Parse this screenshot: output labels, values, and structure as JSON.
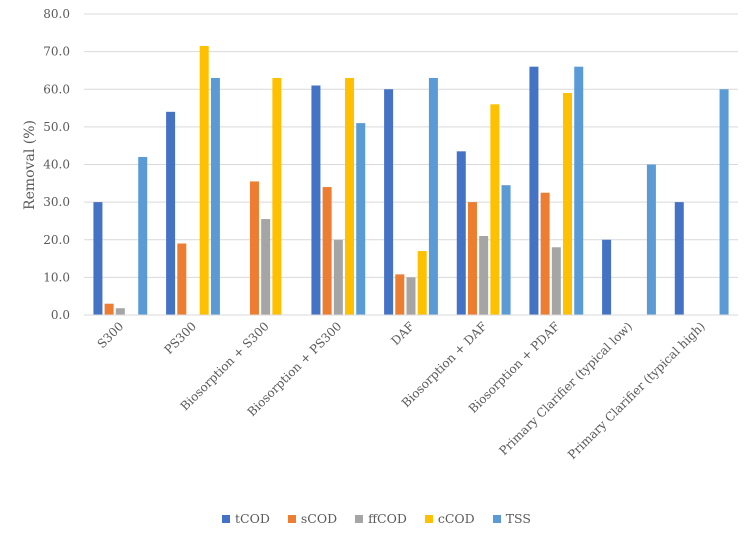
{
  "chart_data": {
    "type": "bar",
    "title": "",
    "xlabel": "",
    "ylabel": "Removal (%)",
    "ylim": [
      0,
      80
    ],
    "yticks": [
      "0.0",
      "10.0",
      "20.0",
      "30.0",
      "40.0",
      "50.0",
      "60.0",
      "70.0",
      "80.0"
    ],
    "grid": true,
    "legend_position": "bottom",
    "categories": [
      "S300",
      "PS300",
      "Biosorption + S300",
      "Biosorption + PS300",
      "DAF",
      "Biosorption + DAF",
      "Biosorption + PDAF",
      "Primary Clarifier (typical low)",
      "Primary Clarifier (typical high)"
    ],
    "series": [
      {
        "name": "tCOD",
        "color": "#4472C4",
        "values": [
          30,
          54,
          null,
          61,
          60,
          43.5,
          66,
          20,
          30
        ]
      },
      {
        "name": "sCOD",
        "color": "#ED7D31",
        "values": [
          3,
          19,
          35.5,
          34,
          10.8,
          30,
          32.5,
          null,
          null
        ]
      },
      {
        "name": "ffCOD",
        "color": "#A5A5A5",
        "values": [
          1.8,
          null,
          25.5,
          20,
          10,
          21,
          18,
          null,
          null
        ]
      },
      {
        "name": "cCOD",
        "color": "#FFC000",
        "values": [
          null,
          71.5,
          63,
          63,
          17,
          56,
          59,
          null,
          null
        ]
      },
      {
        "name": "TSS",
        "color": "#5B9BD5",
        "values": [
          42,
          63,
          null,
          51,
          63,
          34.5,
          66,
          40,
          60
        ]
      }
    ]
  }
}
